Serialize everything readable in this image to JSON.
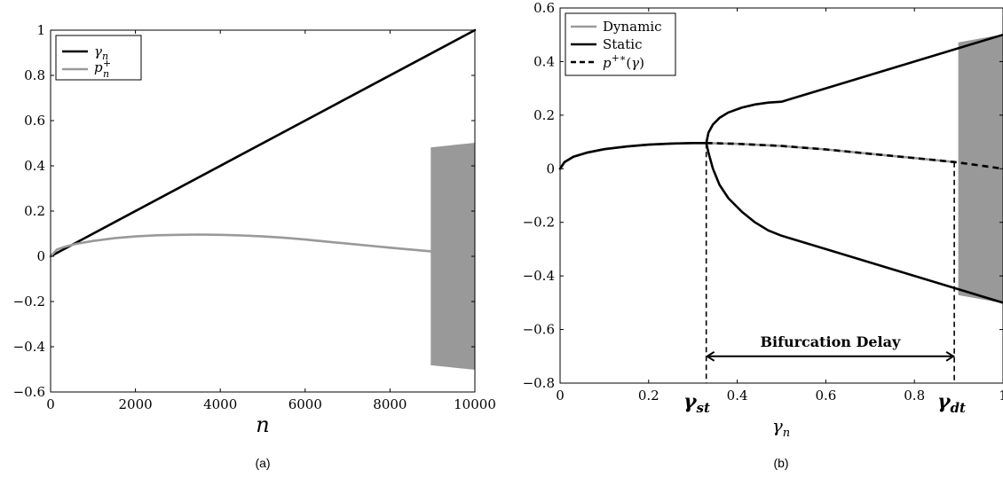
{
  "chart_data": [
    {
      "type": "line",
      "panel": "a",
      "caption": "(a)",
      "xlabel": "n",
      "ylabel": "",
      "xlim": [
        0,
        10000
      ],
      "ylim": [
        -0.6,
        1
      ],
      "x_ticks": [
        0,
        2000,
        4000,
        6000,
        8000,
        10000
      ],
      "x_tick_labels": [
        "0",
        "2000",
        "4000",
        "6000",
        "8000",
        "10000"
      ],
      "y_ticks": [
        -0.6,
        -0.4,
        -0.2,
        0,
        0.2,
        0.4,
        0.6,
        0.8,
        1
      ],
      "y_tick_labels": [
        "−0.6",
        "−0.4",
        "−0.2",
        "0",
        "0.2",
        "0.4",
        "0.6",
        "0.8",
        "1"
      ],
      "legend_position": "top-left",
      "grid": false,
      "series": [
        {
          "name": "γn",
          "legend_label": [
            "γ",
            "n",
            ""
          ],
          "color": "#000000",
          "x": [
            0,
            10000
          ],
          "y": [
            0,
            1
          ]
        },
        {
          "name": "pn+",
          "legend_label": [
            "p",
            "n",
            "+"
          ],
          "color": "#999999",
          "x": [
            0,
            150,
            300,
            600,
            1000,
            1500,
            2000,
            2500,
            3000,
            3500,
            4000,
            4500,
            5000,
            5500,
            6000,
            6500,
            7000,
            7500,
            8000,
            8500,
            8960
          ],
          "y": [
            0,
            0.03,
            0.04,
            0.055,
            0.068,
            0.08,
            0.088,
            0.093,
            0.095,
            0.096,
            0.095,
            0.092,
            0.088,
            0.082,
            0.074,
            0.065,
            0.056,
            0.047,
            0.038,
            0.03,
            0.022
          ]
        }
      ],
      "oscillation_band": {
        "color": "#999999",
        "x_start": 8970,
        "x_end": 10000,
        "upper_start": 0.48,
        "upper_end": 0.5,
        "lower_start": -0.48,
        "lower_end": -0.5
      }
    },
    {
      "type": "line",
      "panel": "b",
      "caption": "(b)",
      "xlabel": "γn",
      "ylabel": "",
      "xlim": [
        0,
        1
      ],
      "ylim": [
        -0.8,
        0.6
      ],
      "x_ticks": [
        0,
        0.2,
        0.4,
        0.6,
        0.8,
        1
      ],
      "x_tick_labels": [
        "0",
        "0.2",
        "0.4",
        "0.6",
        "0.8",
        "1"
      ],
      "y_ticks": [
        -0.8,
        -0.6,
        -0.4,
        -0.2,
        0,
        0.2,
        0.4,
        0.6
      ],
      "y_tick_labels": [
        "−0.8",
        "−0.6",
        "−0.4",
        "−0.2",
        "0",
        "0.2",
        "0.4",
        "0.6"
      ],
      "legend_position": "top-left",
      "grid": false,
      "series": [
        {
          "name": "Dynamic",
          "legend_label": "Dynamic",
          "color": "#999999",
          "x": [
            0,
            0.01,
            0.03,
            0.06,
            0.1,
            0.15,
            0.2,
            0.25,
            0.3,
            0.33,
            0.4,
            0.5,
            0.6,
            0.7,
            0.8,
            0.89
          ],
          "y": [
            0,
            0.025,
            0.045,
            0.06,
            0.073,
            0.083,
            0.09,
            0.094,
            0.096,
            0.096,
            0.093,
            0.085,
            0.072,
            0.056,
            0.04,
            0.025
          ]
        },
        {
          "name": "Static",
          "legend_label": "Static",
          "color": "#000000",
          "branches": [
            {
              "x": [
                0,
                0.01,
                0.03,
                0.06,
                0.1,
                0.15,
                0.2,
                0.25,
                0.3,
                0.33
              ],
              "y": [
                0,
                0.025,
                0.045,
                0.06,
                0.073,
                0.083,
                0.09,
                0.094,
                0.096,
                0.096
              ]
            },
            {
              "x": [
                0.33,
                0.335,
                0.345,
                0.36,
                0.38,
                0.41,
                0.44,
                0.47,
                0.5,
                0.6,
                0.7,
                0.8,
                0.9,
                1
              ],
              "y": [
                0.096,
                0.135,
                0.165,
                0.19,
                0.21,
                0.228,
                0.24,
                0.247,
                0.25,
                0.3,
                0.35,
                0.4,
                0.45,
                0.5
              ]
            },
            {
              "x": [
                0.33,
                0.335,
                0.345,
                0.36,
                0.38,
                0.41,
                0.44,
                0.47,
                0.5,
                0.6,
                0.7,
                0.8,
                0.9,
                1
              ],
              "y": [
                0.096,
                0.06,
                0.0,
                -0.06,
                -0.11,
                -0.16,
                -0.2,
                -0.23,
                -0.25,
                -0.3,
                -0.35,
                -0.4,
                -0.45,
                -0.5
              ]
            }
          ]
        },
        {
          "name": "p+*(γ)",
          "legend_label": "p+*(γ)",
          "color": "#000000",
          "dashed": true,
          "x": [
            0.33,
            0.4,
            0.5,
            0.6,
            0.7,
            0.8,
            0.89,
            0.95,
            1
          ],
          "y": [
            0.096,
            0.093,
            0.085,
            0.072,
            0.056,
            0.04,
            0.025,
            0.012,
            0
          ]
        }
      ],
      "oscillation_band": {
        "color": "#999999",
        "x_start": 0.9,
        "x_end": 1,
        "upper_start": 0.47,
        "upper_end": 0.5,
        "lower_start": -0.47,
        "lower_end": -0.5
      },
      "vlines": [
        {
          "x": 0.33,
          "y_top": 0.096,
          "label": "γst"
        },
        {
          "x": 0.89,
          "y_top": 0.025,
          "label": "γdt"
        }
      ],
      "annotation": {
        "text": "Bifurcation Delay",
        "y": -0.7,
        "x_start": 0.33,
        "x_end": 0.89
      }
    }
  ]
}
